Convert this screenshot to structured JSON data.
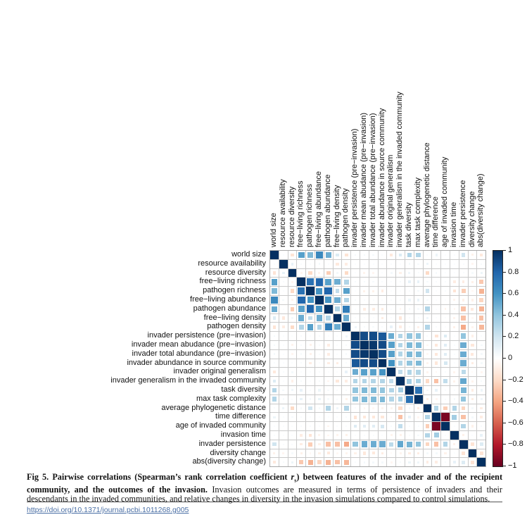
{
  "figure": {
    "caption": {
      "bold_prefix": "Fig 5. Pairwise correlations (Spearman’s rank correlation coefficient ",
      "r_symbol": "r",
      "r_subscript": "s",
      "bold_suffix": ") between features of the invader and of the recipient community, and the outcomes of the invasion.",
      "body": " Invasion outcomes are measured in terms of persistence of invaders and their descendants in the invaded communities, and relative changes in diversity in the invasion simulations compared to control simulations."
    },
    "doi_link": "https://doi.org/10.1371/journal.pcbi.1011268.g005"
  },
  "colorbar": {
    "tick_values": [
      1,
      0.8,
      0.6,
      0.4,
      0.2,
      0,
      -0.2,
      -0.4,
      -0.6,
      -0.8,
      -1
    ],
    "tick_labels": [
      "1",
      "0.8",
      "0.6",
      "0.4",
      "0.2",
      "0",
      "−0.2",
      "−0.4",
      "−0.6",
      "−0.8",
      "−1"
    ],
    "max_color": "#053061",
    "mid_color": "#ffffff",
    "min_color": "#67001f"
  },
  "chart_data": {
    "type": "heatmap",
    "title": "",
    "xlabel": "",
    "ylabel": "",
    "value_range": [
      -1,
      1
    ],
    "grid": true,
    "legend_position": "right-colorbar",
    "color_stops": [
      {
        "v": -1.0,
        "c": "#67001f"
      },
      {
        "v": -0.8,
        "c": "#b2182b"
      },
      {
        "v": -0.6,
        "c": "#d6604d"
      },
      {
        "v": -0.4,
        "c": "#f4a582"
      },
      {
        "v": -0.2,
        "c": "#fddbc7"
      },
      {
        "v": 0.0,
        "c": "#ffffff"
      },
      {
        "v": 0.2,
        "c": "#d1e5f0"
      },
      {
        "v": 0.4,
        "c": "#92c5de"
      },
      {
        "v": 0.6,
        "c": "#4393c3"
      },
      {
        "v": 0.8,
        "c": "#2166ac"
      },
      {
        "v": 1.0,
        "c": "#053061"
      }
    ],
    "labels": [
      "world size",
      "resource availability",
      "resource diversity",
      "free−living richness",
      "pathogen richness",
      "free−living abundance",
      "pathogen abundance",
      "free−living density",
      "pathogen density",
      "invader persistence (pre−invasion)",
      "invader mean abudance (pre−invasion)",
      "invader total abundance (pre−invasion)",
      "invader abundance in source community",
      "invader original generalism",
      "invader generalism in the invaded community",
      "task diversity",
      "max task complexity",
      "average phylogenetic distance",
      "time difference",
      "age of invaded community",
      "invasion time",
      "invader persistence",
      "diversity change",
      "abs(diversity change)"
    ],
    "matrix": [
      [
        1,
        0.02,
        -0.15,
        0.55,
        0.45,
        0.65,
        0.5,
        0.15,
        -0.15,
        0.05,
        0.05,
        0.05,
        0.03,
        -0.12,
        0.15,
        0.3,
        0.3,
        0.03,
        0.08,
        0.02,
        0.03,
        0.2,
        -0.07,
        -0.12
      ],
      [
        0.02,
        1,
        0.1,
        0.03,
        0.02,
        0.05,
        0.02,
        -0.12,
        -0.1,
        0.02,
        0.02,
        0.02,
        0.02,
        0.03,
        0.02,
        0.05,
        0.04,
        0.08,
        0.02,
        0.02,
        0.02,
        0.03,
        -0.05,
        0.04
      ],
      [
        -0.15,
        0.1,
        1,
        -0.05,
        -0.2,
        -0.06,
        -0.25,
        0.05,
        -0.2,
        0.02,
        -0.06,
        -0.05,
        0.02,
        0.05,
        -0.08,
        0.07,
        0.03,
        -0.2,
        0.04,
        0.02,
        0.02,
        0.03,
        0.04,
        0.08
      ],
      [
        0.55,
        0.03,
        -0.05,
        1,
        0.75,
        0.8,
        0.55,
        0.5,
        0.3,
        0.04,
        0.04,
        0.04,
        0.03,
        0.02,
        0.04,
        0.1,
        0.1,
        0.04,
        0.03,
        0.03,
        -0.1,
        -0.1,
        -0.08,
        -0.27
      ],
      [
        0.45,
        0.02,
        -0.2,
        0.75,
        1,
        0.6,
        0.8,
        0.25,
        0.55,
        0.02,
        -0.07,
        -0.07,
        -0.1,
        0.02,
        0.02,
        0.03,
        0.05,
        0.2,
        0.02,
        0.03,
        -0.15,
        -0.25,
        -0.04,
        -0.35
      ],
      [
        0.65,
        0.05,
        -0.06,
        0.8,
        0.6,
        1,
        0.6,
        0.5,
        0.3,
        0.04,
        0.03,
        0.03,
        0.02,
        0.03,
        0.04,
        0.08,
        0.09,
        0.04,
        0.02,
        0.02,
        -0.06,
        -0.08,
        -0.08,
        -0.22
      ],
      [
        0.5,
        0.02,
        -0.25,
        0.55,
        0.8,
        0.6,
        1,
        0.3,
        0.7,
        0.02,
        -0.1,
        -0.1,
        -0.1,
        0.02,
        -0.05,
        0.04,
        0.04,
        0.3,
        0.02,
        -0.06,
        -0.05,
        -0.3,
        -0.12,
        -0.35
      ],
      [
        0.15,
        -0.12,
        0.05,
        0.5,
        0.25,
        0.5,
        0.3,
        1,
        0.5,
        0.02,
        0.02,
        0.02,
        -0.1,
        0.02,
        -0.13,
        0.03,
        0.03,
        0.07,
        0.02,
        0.02,
        -0.06,
        -0.3,
        -0.04,
        -0.3
      ],
      [
        -0.15,
        -0.1,
        -0.2,
        0.3,
        0.55,
        0.3,
        0.7,
        0.5,
        1,
        0.07,
        0.04,
        0.04,
        0.03,
        0.1,
        -0.1,
        0.04,
        -0.08,
        0.3,
        0.03,
        0.02,
        -0.08,
        -0.38,
        -0.06,
        -0.33
      ],
      [
        0.05,
        0.02,
        0.02,
        0.04,
        0.02,
        0.04,
        0.02,
        0.02,
        0.07,
        1,
        0.9,
        0.9,
        0.85,
        0.5,
        0.3,
        0.4,
        0.4,
        0.03,
        -0.15,
        0.15,
        0.02,
        0.4,
        -0.08,
        0.03
      ],
      [
        0.05,
        0.02,
        -0.06,
        0.04,
        -0.07,
        0.03,
        -0.1,
        0.02,
        0.04,
        0.9,
        1,
        0.97,
        0.9,
        0.55,
        0.3,
        0.45,
        0.45,
        -0.05,
        -0.13,
        0.13,
        0.03,
        0.5,
        -0.13,
        0.05
      ],
      [
        0.05,
        0.02,
        -0.05,
        0.04,
        -0.07,
        0.03,
        -0.1,
        0.02,
        0.04,
        0.9,
        0.97,
        1,
        0.9,
        0.55,
        0.3,
        0.45,
        0.45,
        -0.04,
        -0.13,
        0.13,
        0.03,
        0.5,
        -0.12,
        0.05
      ],
      [
        0.03,
        0.02,
        0.02,
        0.03,
        -0.1,
        0.02,
        -0.1,
        -0.1,
        0.03,
        0.85,
        0.9,
        0.9,
        1,
        0.6,
        0.3,
        0.4,
        0.45,
        -0.06,
        -0.13,
        0.18,
        0.02,
        0.5,
        -0.1,
        0.05
      ],
      [
        -0.12,
        0.03,
        0.05,
        0.02,
        0.02,
        0.03,
        0.02,
        0.02,
        0.1,
        0.5,
        0.55,
        0.55,
        0.6,
        1,
        0.25,
        0.3,
        0.3,
        -0.06,
        -0.04,
        0.03,
        -0.06,
        0.27,
        -0.03,
        -0.05
      ],
      [
        0.15,
        0.02,
        -0.08,
        0.04,
        0.02,
        0.04,
        -0.05,
        -0.13,
        -0.1,
        0.3,
        0.3,
        0.3,
        0.3,
        0.25,
        1,
        0.35,
        0.32,
        -0.2,
        -0.3,
        0.25,
        -0.07,
        0.52,
        -0.06,
        0.04
      ],
      [
        0.3,
        0.05,
        0.07,
        0.1,
        0.03,
        0.08,
        0.04,
        0.03,
        0.04,
        0.4,
        0.45,
        0.45,
        0.4,
        0.3,
        0.35,
        1,
        0.75,
        0.05,
        0.1,
        0.03,
        0.03,
        0.47,
        -0.1,
        0.08
      ],
      [
        0.3,
        0.04,
        0.03,
        0.1,
        0.05,
        0.09,
        0.04,
        0.03,
        -0.08,
        0.4,
        0.45,
        0.45,
        0.45,
        0.3,
        0.32,
        0.75,
        1,
        -0.1,
        -0.05,
        0.03,
        0.05,
        0.4,
        -0.1,
        0.07
      ],
      [
        0.03,
        0.08,
        -0.2,
        0.04,
        0.2,
        0.04,
        0.3,
        0.07,
        0.3,
        0.03,
        -0.05,
        -0.04,
        -0.06,
        -0.06,
        -0.2,
        0.05,
        -0.1,
        1,
        0.3,
        -0.25,
        0.3,
        -0.22,
        0.05,
        -0.1
      ],
      [
        0.08,
        0.02,
        0.04,
        0.03,
        0.02,
        0.02,
        0.02,
        0.02,
        0.03,
        -0.15,
        -0.13,
        -0.13,
        -0.13,
        -0.04,
        -0.3,
        0.1,
        -0.05,
        0.3,
        1,
        -0.95,
        0.35,
        -0.3,
        0.05,
        -0.1
      ],
      [
        0.02,
        0.02,
        0.02,
        0.03,
        0.03,
        0.02,
        -0.06,
        0.02,
        0.02,
        0.15,
        0.13,
        0.13,
        0.18,
        0.03,
        0.25,
        0.03,
        0.03,
        -0.25,
        -0.95,
        1,
        0.02,
        0.3,
        -0.07,
        0.04
      ],
      [
        0.03,
        0.02,
        0.02,
        -0.1,
        -0.15,
        -0.06,
        -0.05,
        -0.06,
        -0.08,
        0.02,
        0.03,
        0.03,
        0.02,
        -0.06,
        -0.07,
        0.03,
        0.05,
        0.3,
        0.35,
        0.02,
        1,
        -0.07,
        0.02,
        0.1
      ],
      [
        0.2,
        0.03,
        0.03,
        -0.1,
        -0.25,
        -0.08,
        -0.3,
        -0.3,
        -0.38,
        0.4,
        0.5,
        0.5,
        0.5,
        0.27,
        0.52,
        0.47,
        0.4,
        -0.22,
        -0.3,
        0.3,
        -0.07,
        1,
        -0.15,
        0.15
      ],
      [
        -0.07,
        -0.05,
        0.04,
        -0.08,
        -0.04,
        -0.08,
        -0.12,
        -0.04,
        -0.06,
        -0.08,
        -0.13,
        -0.12,
        -0.1,
        -0.03,
        -0.06,
        -0.1,
        -0.1,
        0.05,
        0.05,
        -0.07,
        0.02,
        -0.15,
        1,
        -0.15
      ],
      [
        -0.12,
        0.04,
        0.08,
        -0.27,
        -0.35,
        -0.22,
        -0.35,
        -0.3,
        -0.33,
        0.03,
        0.05,
        0.05,
        0.05,
        -0.05,
        0.04,
        0.08,
        0.07,
        -0.1,
        -0.1,
        0.04,
        0.1,
        0.15,
        -0.15,
        1
      ]
    ]
  }
}
